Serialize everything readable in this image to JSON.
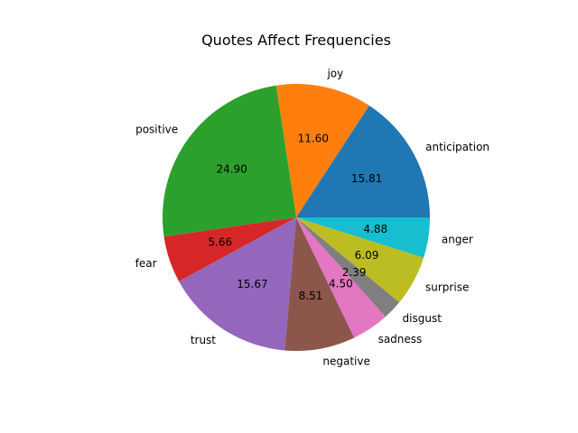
{
  "chart_data": {
    "type": "pie",
    "title": "Quotes Affect Frequencies",
    "categories": [
      "anticipation",
      "joy",
      "positive",
      "fear",
      "trust",
      "negative",
      "sadness",
      "disgust",
      "surprise",
      "anger"
    ],
    "values": [
      15.81,
      11.6,
      24.9,
      5.66,
      15.67,
      8.51,
      4.5,
      2.39,
      6.09,
      4.88
    ],
    "value_labels": [
      "15.81",
      "11.60",
      "24.90",
      "5.66",
      "15.67",
      "8.51",
      "4.50",
      "2.39",
      "6.09",
      "4.88"
    ],
    "colors": [
      "#1f77b4",
      "#ff7f0e",
      "#2ca02c",
      "#d62728",
      "#9467bd",
      "#8c564b",
      "#e377c2",
      "#7f7f7f",
      "#bcbd22",
      "#17becf"
    ],
    "start_angle_deg": 0,
    "direction": "counterclockwise",
    "legend": "none"
  }
}
